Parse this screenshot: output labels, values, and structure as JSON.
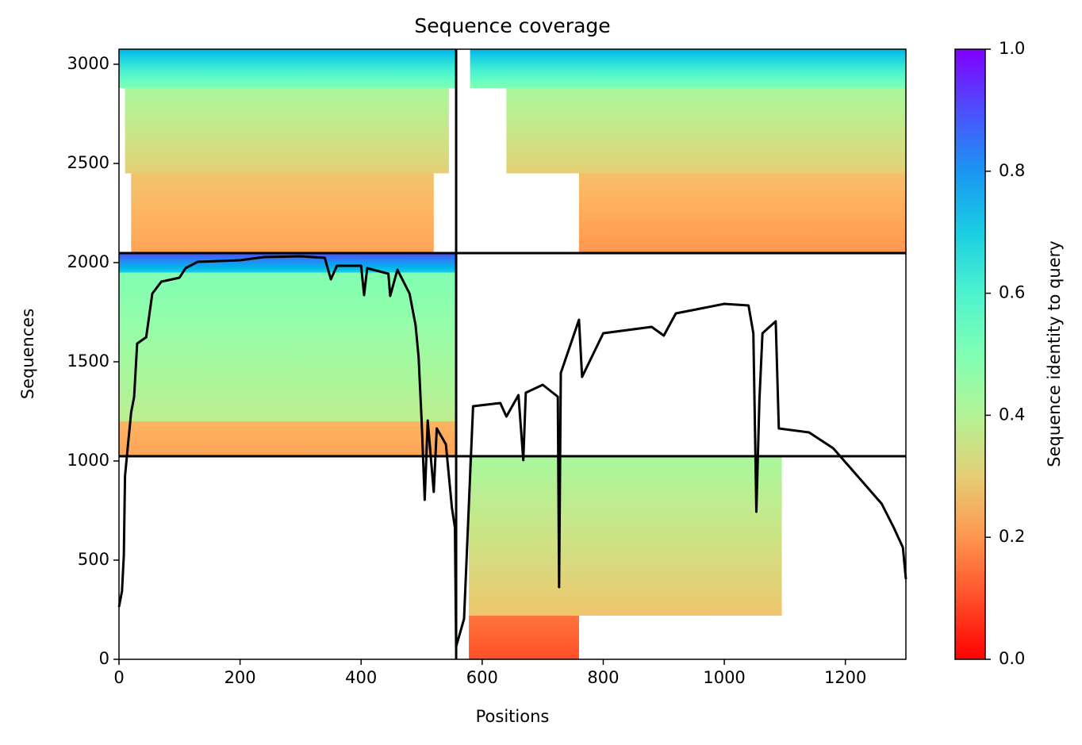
{
  "chart_data": {
    "type": "coverage",
    "title": "Sequence coverage",
    "xlabel": "Positions",
    "ylabel": "Sequences",
    "xlim": [
      0,
      1300
    ],
    "ylim": [
      0,
      3076
    ],
    "xticks": [
      0,
      200,
      400,
      600,
      800,
      1000,
      1200
    ],
    "yticks": [
      0,
      500,
      1000,
      1500,
      2000,
      2500,
      3000
    ],
    "colorbar": {
      "label": "Sequence identity to query",
      "lim": [
        0,
        1
      ],
      "ticks": [
        {
          "value": 0,
          "label": "0.0"
        },
        0.2,
        0.4,
        0.6,
        0.8,
        {
          "value": 1,
          "label": "1.0"
        }
      ]
    },
    "blocks": [
      {
        "x": [
          20,
          520
        ],
        "y": [
          2048,
          2450
        ],
        "identity": [
          0.22,
          0.28
        ]
      },
      {
        "x": [
          10,
          545
        ],
        "y": [
          2450,
          2880
        ],
        "identity": [
          0.3,
          0.42
        ]
      },
      {
        "x": [
          0,
          557
        ],
        "y": [
          2880,
          3076
        ],
        "identity": [
          0.5,
          0.75
        ]
      },
      {
        "x": [
          760,
          1300
        ],
        "y": [
          2048,
          2450
        ],
        "identity": [
          0.2,
          0.27
        ]
      },
      {
        "x": [
          640,
          1300
        ],
        "y": [
          2450,
          2880
        ],
        "identity": [
          0.3,
          0.42
        ]
      },
      {
        "x": [
          580,
          1300
        ],
        "y": [
          2880,
          3076
        ],
        "identity": [
          0.5,
          0.75
        ]
      },
      {
        "x": [
          0,
          557
        ],
        "y": [
          1024,
          1200
        ],
        "identity": [
          0.22,
          0.25
        ]
      },
      {
        "x": [
          0,
          557
        ],
        "y": [
          1200,
          1950
        ],
        "identity": [
          0.38,
          0.5
        ]
      },
      {
        "x": [
          0,
          557
        ],
        "y": [
          1950,
          2048
        ],
        "identity": [
          0.7,
          0.9
        ]
      },
      {
        "x": [
          578,
          1095
        ],
        "y": [
          220,
          1024
        ],
        "identity": [
          0.28,
          0.42
        ]
      },
      {
        "x": [
          578,
          760
        ],
        "y": [
          0,
          220
        ],
        "identity": [
          0.1,
          0.15
        ]
      }
    ],
    "dividers": {
      "x": [
        557
      ],
      "y": [
        1024,
        2048
      ]
    },
    "line": {
      "color": "#000000",
      "x": [
        0,
        5,
        8,
        10,
        15,
        20,
        25,
        30,
        45,
        55,
        70,
        100,
        110,
        130,
        200,
        240,
        300,
        340,
        350,
        360,
        400,
        405,
        410,
        420,
        445,
        448,
        460,
        480,
        490,
        495,
        500,
        505,
        510,
        520,
        525,
        540,
        550,
        555,
        557,
        570,
        580,
        585,
        630,
        640,
        660,
        668,
        672,
        700,
        725,
        727,
        730,
        760,
        765,
        800,
        880,
        900,
        920,
        1000,
        1040,
        1048,
        1053,
        1058,
        1063,
        1085,
        1090,
        1140,
        1180,
        1220,
        1260,
        1280,
        1295,
        1300
      ],
      "values": [
        264,
        344,
        524,
        924,
        1084,
        1244,
        1324,
        1592,
        1624,
        1844,
        1904,
        1924,
        1972,
        2004,
        2012,
        2028,
        2032,
        2024,
        1916,
        1984,
        1984,
        1836,
        1972,
        1964,
        1944,
        1832,
        1964,
        1844,
        1684,
        1524,
        1204,
        804,
        1204,
        844,
        1164,
        1084,
        764,
        664,
        64,
        204,
        924,
        1276,
        1292,
        1224,
        1332,
        1004,
        1344,
        1384,
        1324,
        364,
        1444,
        1712,
        1424,
        1644,
        1676,
        1632,
        1744,
        1792,
        1784,
        1644,
        744,
        1304,
        1644,
        1704,
        1164,
        1144,
        1064,
        924,
        784,
        664,
        564,
        404
      ]
    }
  }
}
